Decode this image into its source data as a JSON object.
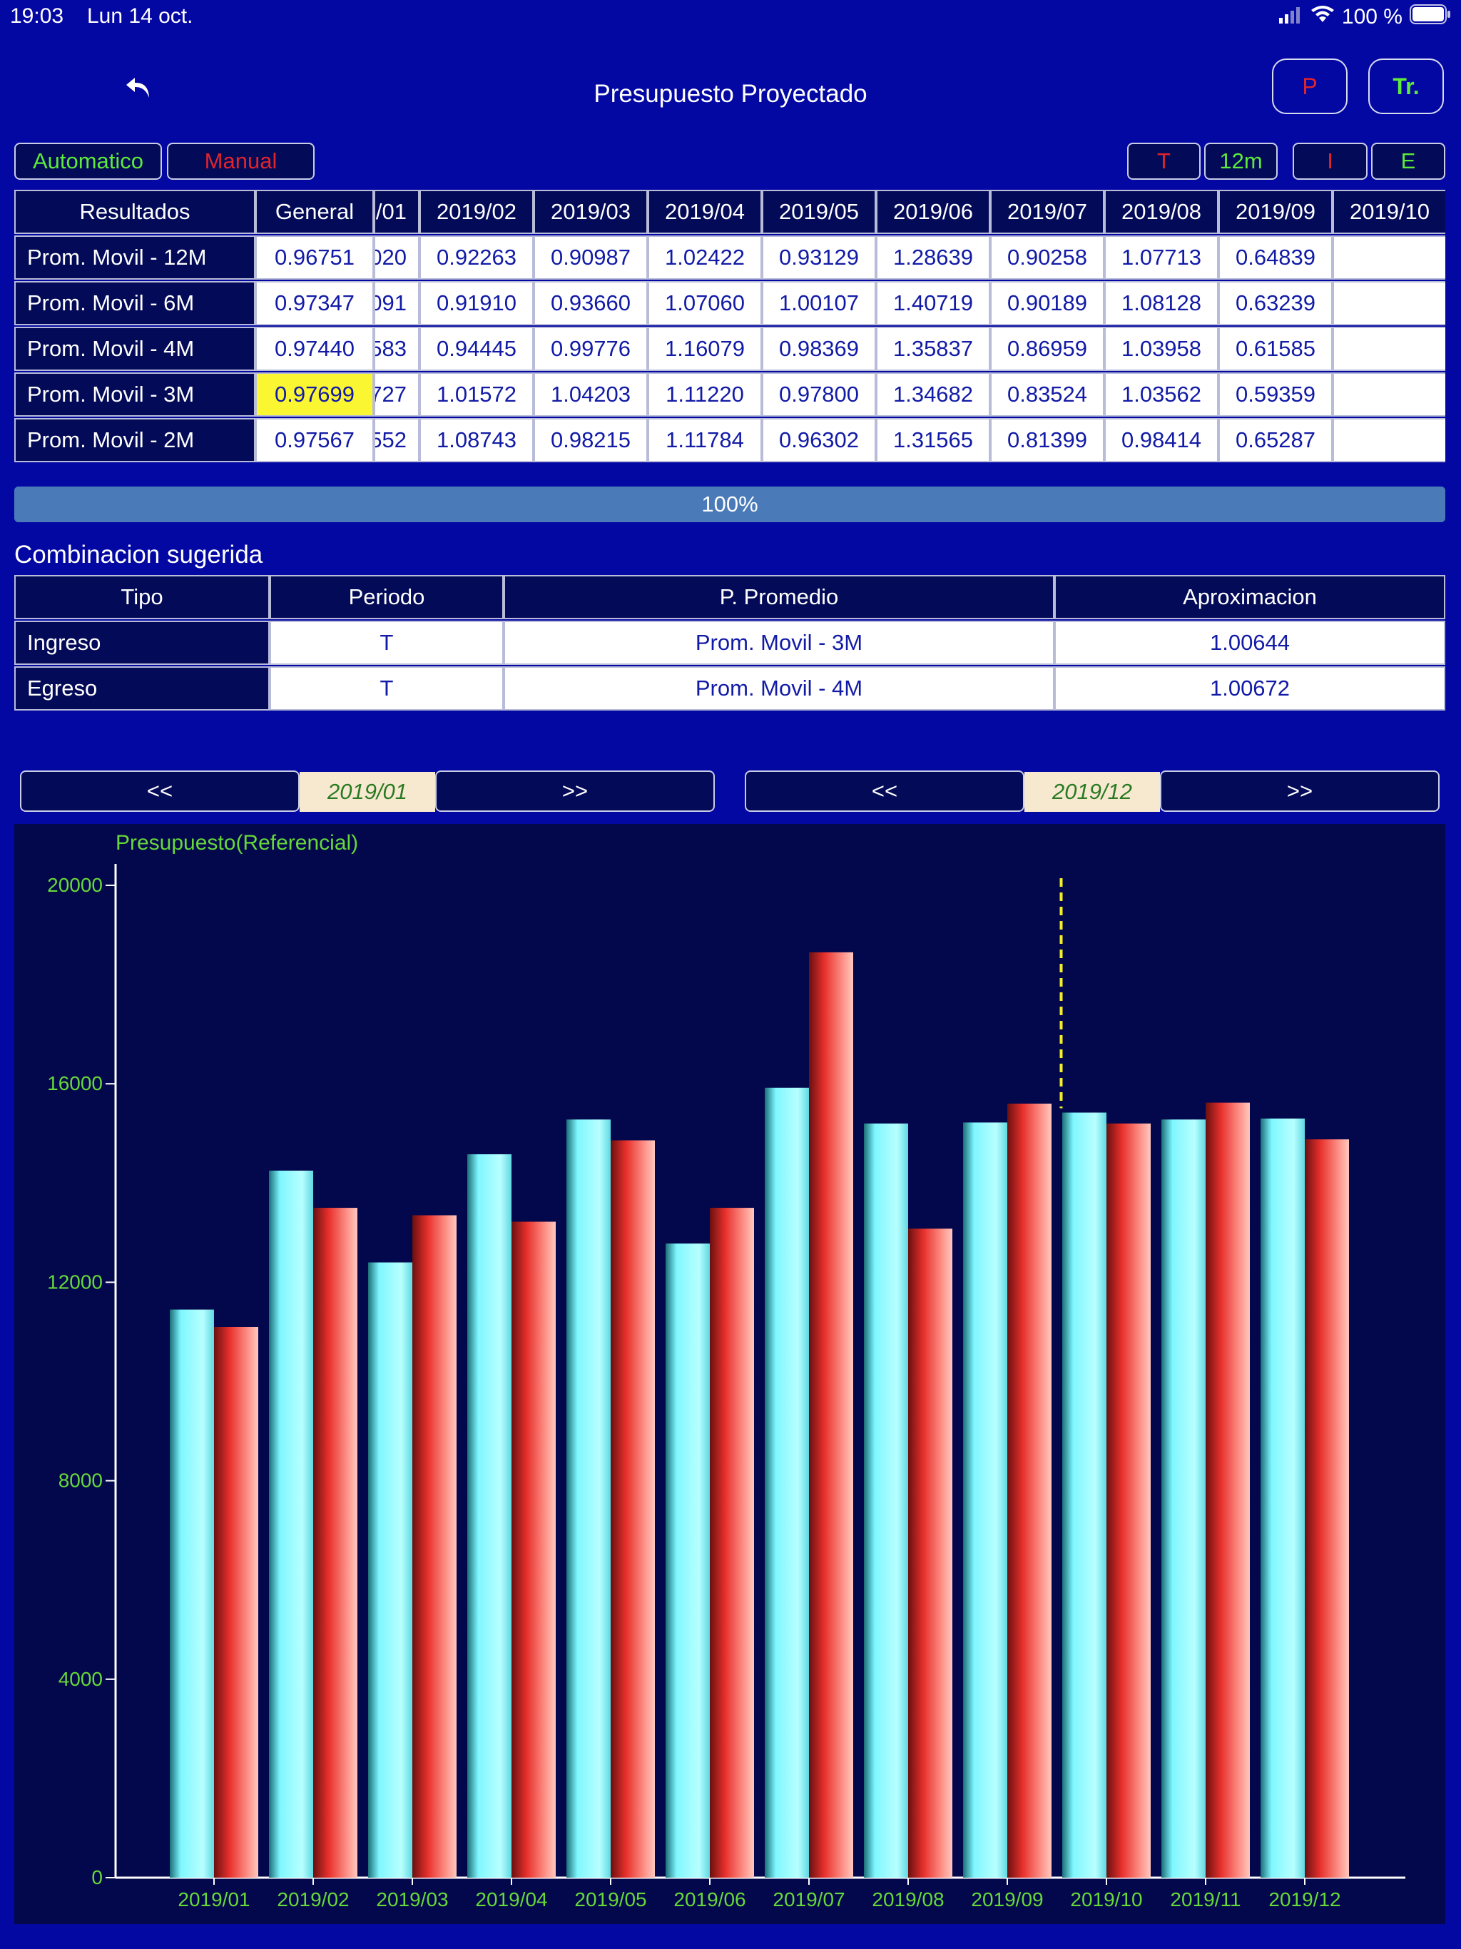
{
  "status": {
    "time": "19:03",
    "date": "Lun 14 oct.",
    "battery": "100 %"
  },
  "nav": {
    "title": "Presupuesto Proyectado",
    "btn_p": "P",
    "btn_tr": "Tr."
  },
  "toolbar": {
    "automatic": "Automatico",
    "manual": "Manual",
    "t": "T",
    "m12": "12m",
    "i": "I",
    "e": "E"
  },
  "results": {
    "header_label": "Resultados",
    "header_general": "General",
    "header_partial": "/01",
    "months": [
      "2019/02",
      "2019/03",
      "2019/04",
      "2019/05",
      "2019/06",
      "2019/07",
      "2019/08",
      "2019/09",
      "2019/10"
    ],
    "rows": [
      {
        "label": "Prom. Movil - 12M",
        "general": "0.96751",
        "partial": "020",
        "values": [
          "0.92263",
          "0.90987",
          "1.02422",
          "0.93129",
          "1.28639",
          "0.90258",
          "1.07713",
          "0.64839",
          ""
        ]
      },
      {
        "label": "Prom. Movil - 6M",
        "general": "0.97347",
        "partial": "091",
        "values": [
          "0.91910",
          "0.93660",
          "1.07060",
          "1.00107",
          "1.40719",
          "0.90189",
          "1.08128",
          "0.63239",
          ""
        ]
      },
      {
        "label": "Prom. Movil - 4M",
        "general": "0.97440",
        "partial": "583",
        "values": [
          "0.94445",
          "0.99776",
          "1.16079",
          "0.98369",
          "1.35837",
          "0.86959",
          "1.03958",
          "0.61585",
          ""
        ]
      },
      {
        "label": "Prom. Movil - 3M",
        "general": "0.97699",
        "partial": "727",
        "values": [
          "1.01572",
          "1.04203",
          "1.11220",
          "0.97800",
          "1.34682",
          "0.83524",
          "1.03562",
          "0.59359",
          ""
        ]
      },
      {
        "label": "Prom. Movil - 2M",
        "general": "0.97567",
        "partial": "552",
        "values": [
          "1.08743",
          "0.98215",
          "1.11784",
          "0.96302",
          "1.31565",
          "0.81399",
          "0.98414",
          "0.65287",
          ""
        ]
      }
    ],
    "highlight_row": 3
  },
  "progress": {
    "label": "100%",
    "fraction": 1.0
  },
  "combination": {
    "title": "Combinacion sugerida",
    "headers": [
      "Tipo",
      "Periodo",
      "P. Promedio",
      "Aproximacion"
    ],
    "rows": [
      [
        "Ingreso",
        "T",
        "Prom. Movil - 3M",
        "1.00644"
      ],
      [
        "Egreso",
        "T",
        "Prom. Movil - 4M",
        "1.00672"
      ]
    ]
  },
  "pager_left": {
    "prev": "<<",
    "label": "2019/01",
    "next": ">>"
  },
  "pager_right": {
    "prev": "<<",
    "label": "2019/12",
    "next": ">>"
  },
  "colors": {
    "background": "#0408a3",
    "header": "#030a57",
    "chart_bg": "#03074b",
    "cyan": "#7ff7ff",
    "red": "#e8302c",
    "green_text": "#66d83a",
    "highlight": "#fbf632"
  },
  "chart_data": {
    "type": "bar",
    "title": "Presupuesto(Referencial)",
    "categories": [
      "2019/01",
      "2019/02",
      "2019/03",
      "2019/04",
      "2019/05",
      "2019/06",
      "2019/07",
      "2019/08",
      "2019/09",
      "2019/10",
      "2019/11",
      "2019/12"
    ],
    "series": [
      {
        "color": "#7ff7ff",
        "values": [
          11450,
          14250,
          12400,
          14580,
          15280,
          12780,
          15920,
          15200,
          15220,
          15420,
          15280,
          15300
        ]
      },
      {
        "color": "#e8302c",
        "values": [
          11100,
          13500,
          13350,
          13220,
          14860,
          13500,
          18650,
          13080,
          15600,
          15200,
          15620,
          14880
        ]
      }
    ],
    "yticks": [
      0,
      4000,
      8000,
      12000,
      16000,
      20000
    ],
    "ylim": [
      0,
      20000
    ],
    "marker_between": [
      "2019/09",
      "2019/10"
    ],
    "grid": false
  }
}
